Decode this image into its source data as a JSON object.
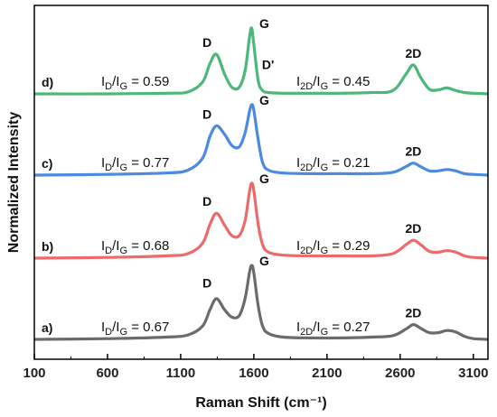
{
  "chart_data": {
    "type": "line",
    "xlabel": "Raman Shift (cm⁻¹)",
    "ylabel": "Normalized Intensity",
    "xlim": [
      100,
      3200
    ],
    "xticks": [
      100,
      600,
      1100,
      1600,
      2100,
      2600,
      3100
    ],
    "grid": false,
    "legend": "none",
    "y_scale": "arbitrary units, stacked spectra",
    "series": [
      {
        "label": "a)",
        "color": "#6b6b6b",
        "ratio_d": {
          "num": "D",
          "den": "G",
          "value": "= 0.67"
        },
        "ratio_2d": {
          "num": "2D",
          "den": "G",
          "value": "= 0.27"
        },
        "x": [
          100,
          600,
          1000,
          1150,
          1250,
          1300,
          1345,
          1400,
          1450,
          1500,
          1540,
          1570,
          1585,
          1600,
          1630,
          1660,
          1700,
          1800,
          2000,
          2200,
          2400,
          2550,
          2640,
          2690,
          2740,
          2800,
          2860,
          2920,
          2980,
          3040,
          3100,
          3200
        ],
        "y": [
          0.0,
          0.01,
          0.03,
          0.06,
          0.18,
          0.4,
          0.55,
          0.4,
          0.3,
          0.32,
          0.55,
          0.9,
          1.0,
          0.9,
          0.45,
          0.18,
          0.08,
          0.03,
          0.02,
          0.02,
          0.03,
          0.05,
          0.14,
          0.2,
          0.15,
          0.09,
          0.09,
          0.12,
          0.1,
          0.04,
          0.01,
          0.0
        ]
      },
      {
        "label": "b)",
        "color": "#ee6a6a",
        "ratio_d": {
          "num": "D",
          "den": "G",
          "value": "= 0.68"
        },
        "ratio_2d": {
          "num": "2D",
          "den": "G",
          "value": "= 0.29"
        },
        "x": [
          100,
          600,
          1000,
          1150,
          1250,
          1300,
          1345,
          1400,
          1450,
          1500,
          1540,
          1570,
          1585,
          1600,
          1630,
          1660,
          1700,
          1800,
          2000,
          2200,
          2400,
          2550,
          2640,
          2690,
          2740,
          2800,
          2860,
          2920,
          2980,
          3040,
          3100,
          3200
        ],
        "y": [
          0.0,
          0.01,
          0.03,
          0.06,
          0.2,
          0.45,
          0.6,
          0.44,
          0.3,
          0.3,
          0.5,
          0.88,
          1.0,
          0.9,
          0.45,
          0.18,
          0.08,
          0.04,
          0.03,
          0.03,
          0.03,
          0.06,
          0.18,
          0.24,
          0.18,
          0.09,
          0.08,
          0.1,
          0.08,
          0.03,
          0.01,
          0.0
        ]
      },
      {
        "label": "c)",
        "color": "#4a8ae0",
        "ratio_d": {
          "num": "D",
          "den": "G",
          "value": "= 0.77"
        },
        "ratio_2d": {
          "num": "2D",
          "den": "G",
          "value": "= 0.21"
        },
        "x": [
          100,
          600,
          1000,
          1150,
          1250,
          1300,
          1345,
          1400,
          1450,
          1500,
          1540,
          1570,
          1585,
          1600,
          1630,
          1660,
          1700,
          1800,
          2000,
          2200,
          2400,
          2550,
          2640,
          2690,
          2740,
          2800,
          2860,
          2920,
          2980,
          3040,
          3100,
          3200
        ],
        "y": [
          0.0,
          0.01,
          0.03,
          0.07,
          0.24,
          0.55,
          0.7,
          0.58,
          0.42,
          0.4,
          0.6,
          0.9,
          1.0,
          0.92,
          0.5,
          0.18,
          0.07,
          0.03,
          0.02,
          0.02,
          0.02,
          0.04,
          0.12,
          0.17,
          0.12,
          0.06,
          0.06,
          0.08,
          0.06,
          0.02,
          0.01,
          0.0
        ]
      },
      {
        "label": "d)",
        "color": "#4bb87a",
        "ratio_d": {
          "num": "D",
          "den": "G",
          "value": "= 0.59"
        },
        "ratio_2d": {
          "num": "2D",
          "den": "G",
          "value": "= 0.45"
        },
        "x": [
          100,
          600,
          1000,
          1150,
          1250,
          1300,
          1345,
          1400,
          1450,
          1500,
          1540,
          1570,
          1585,
          1600,
          1630,
          1660,
          1700,
          1800,
          2000,
          2200,
          2400,
          2550,
          2640,
          2690,
          2740,
          2800,
          2860,
          2920,
          2980,
          3040,
          3100,
          3200
        ],
        "y": [
          0.0,
          0.0,
          0.01,
          0.03,
          0.18,
          0.46,
          0.6,
          0.3,
          0.1,
          0.1,
          0.35,
          0.85,
          1.0,
          0.75,
          0.2,
          0.05,
          0.02,
          0.01,
          0.01,
          0.01,
          0.02,
          0.05,
          0.3,
          0.44,
          0.25,
          0.07,
          0.06,
          0.09,
          0.05,
          0.02,
          0.01,
          0.0
        ]
      }
    ],
    "peak_labels": {
      "d": "D",
      "g": "G",
      "dprime": "D'",
      "twod": "2D"
    }
  }
}
